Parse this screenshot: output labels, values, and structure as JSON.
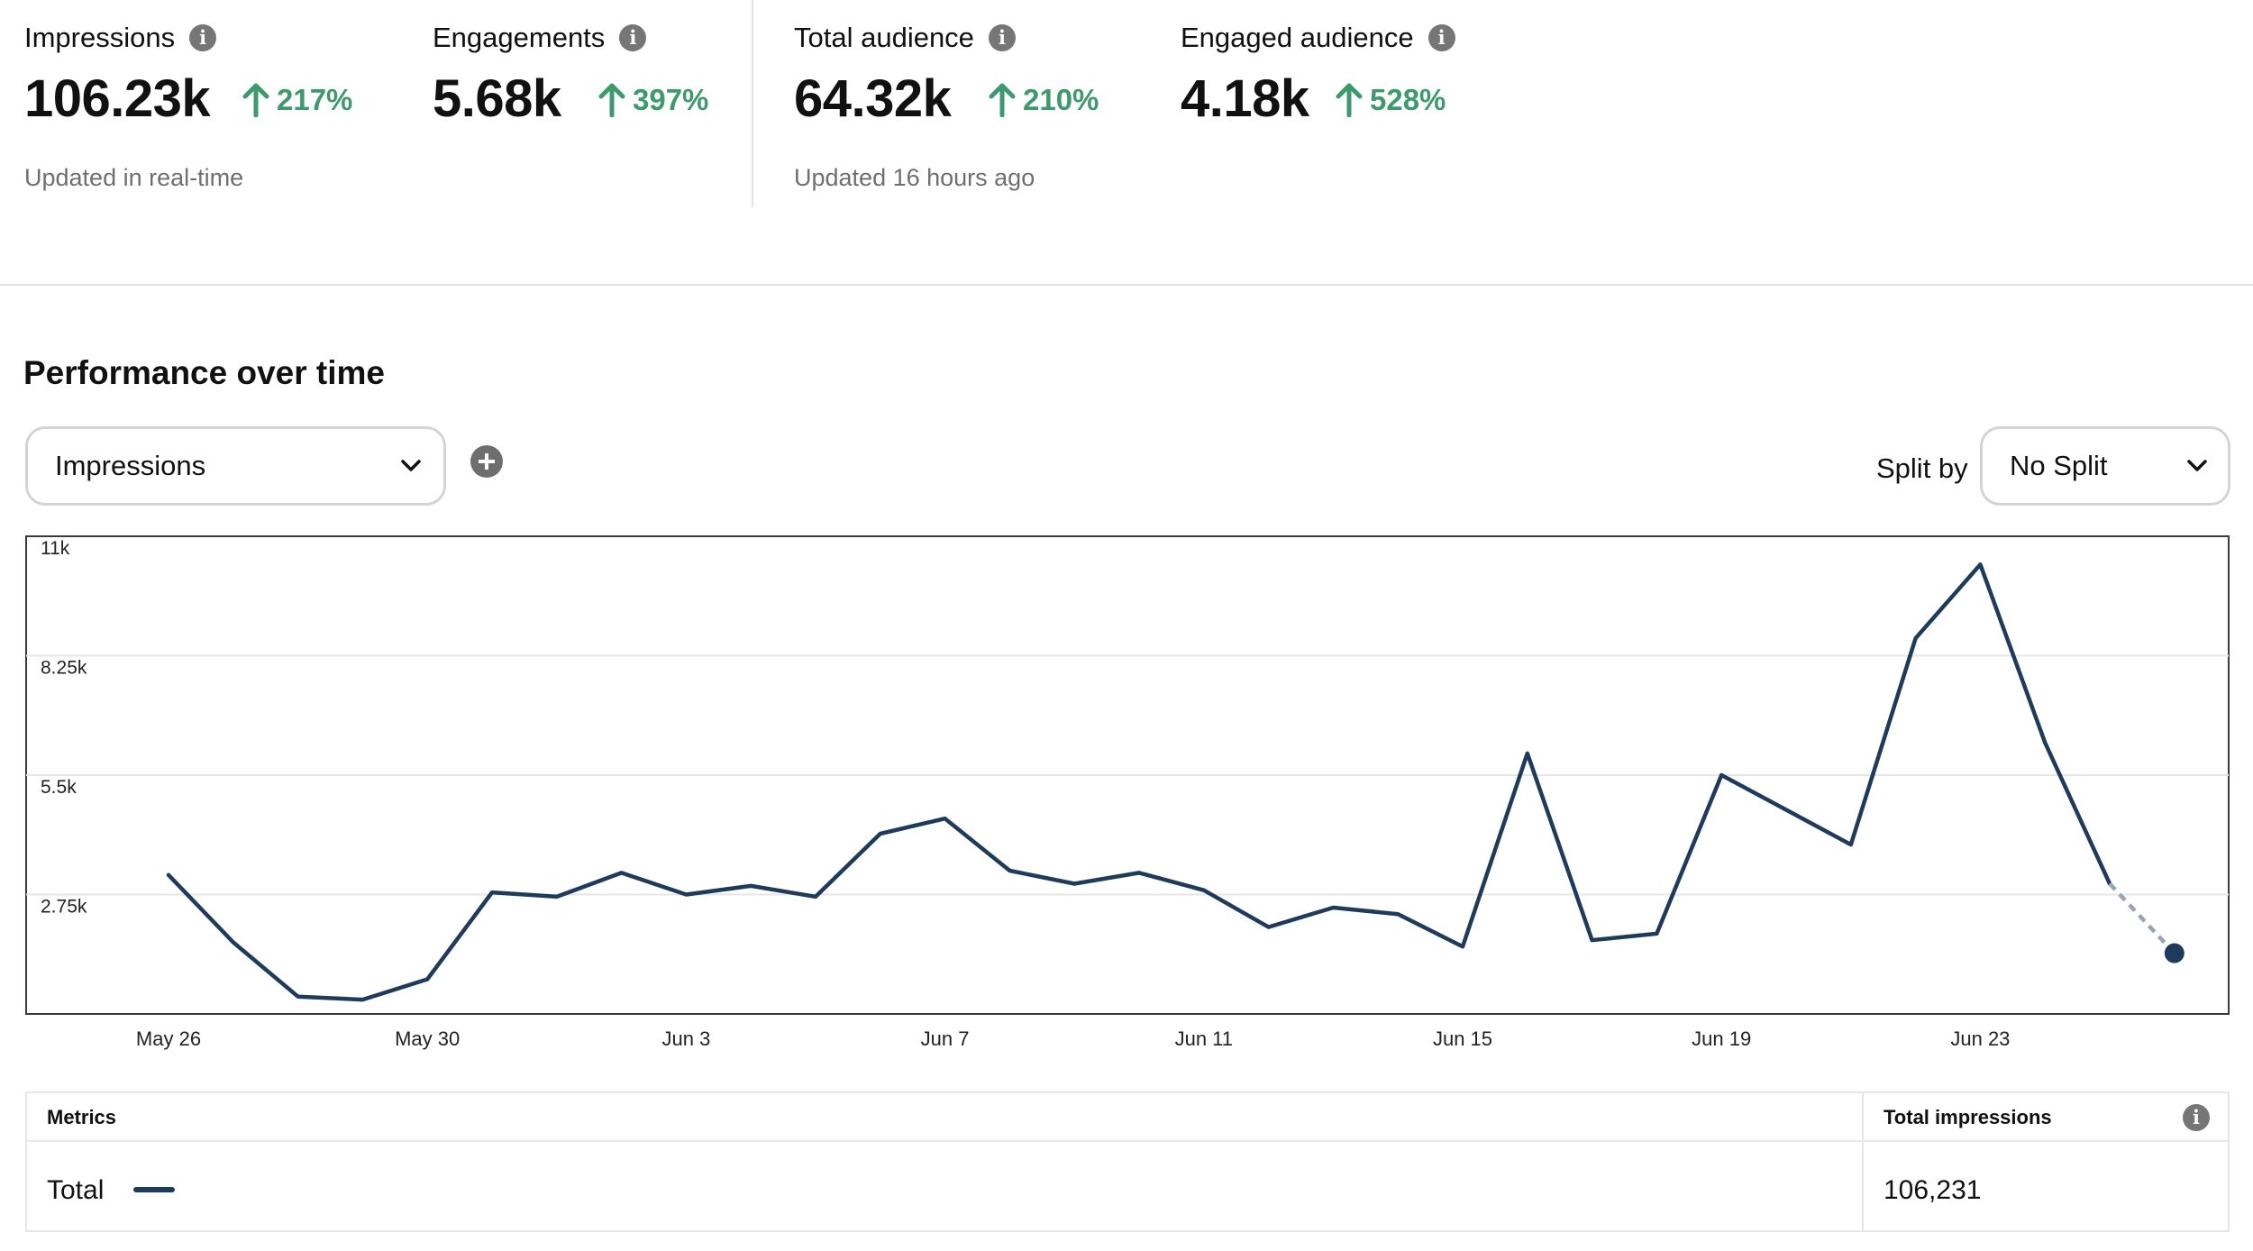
{
  "summary": [
    {
      "label": "Impressions",
      "value": "106.23k",
      "change": "217%",
      "updated": "Updated in real-time"
    },
    {
      "label": "Engagements",
      "value": "5.68k",
      "change": "397%"
    },
    {
      "label": "Total audience",
      "value": "64.32k",
      "change": "210%",
      "updated": "Updated 16 hours ago"
    },
    {
      "label": "Engaged audience",
      "value": "4.18k",
      "change": "528%"
    }
  ],
  "colors": {
    "accent_up": "#3e9a6e",
    "series": "#1f3b5c"
  },
  "performance": {
    "title": "Performance over time",
    "metric_select": "Impressions",
    "split_label": "Split by",
    "split_select": "No Split"
  },
  "chart_data": {
    "type": "line",
    "x": [
      "May 26",
      "May 27",
      "May 28",
      "May 29",
      "May 30",
      "May 31",
      "Jun 1",
      "Jun 2",
      "Jun 3",
      "Jun 4",
      "Jun 5",
      "Jun 6",
      "Jun 7",
      "Jun 8",
      "Jun 9",
      "Jun 10",
      "Jun 11",
      "Jun 12",
      "Jun 13",
      "Jun 14",
      "Jun 15",
      "Jun 16",
      "Jun 17",
      "Jun 18",
      "Jun 19",
      "Jun 20",
      "Jun 21",
      "Jun 22",
      "Jun 23",
      "Jun 24",
      "Jun 25",
      "Jun 26"
    ],
    "values": [
      3200,
      1650,
      400,
      330,
      800,
      2800,
      2700,
      3250,
      2750,
      2950,
      2700,
      4150,
      4500,
      3300,
      3000,
      3250,
      2850,
      2000,
      2450,
      2300,
      1550,
      6000,
      1700,
      1850,
      5500,
      4700,
      3900,
      8650,
      10350,
      6250,
      3000,
      1400
    ],
    "projected_from_index": 30,
    "x_tick_labels": [
      "May 26",
      "May 30",
      "Jun 3",
      "Jun 7",
      "Jun 11",
      "Jun 15",
      "Jun 19",
      "Jun 23"
    ],
    "y_tick_labels": [
      "11k",
      "8.25k",
      "5.5k",
      "2.75k"
    ],
    "y_ticks": [
      11000,
      8250,
      5500,
      2750
    ],
    "ylim": [
      0,
      11000
    ],
    "grid": true
  },
  "table": {
    "col_metrics": "Metrics",
    "col_total": "Total impressions",
    "row_label": "Total",
    "row_value": "106,231"
  }
}
